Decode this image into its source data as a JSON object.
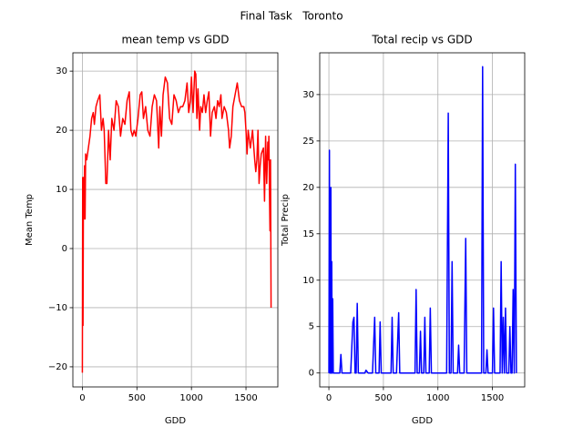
{
  "figure_title": "Final Task   Toronto",
  "chart_data": [
    {
      "type": "line",
      "title": "mean temp vs GDD",
      "xlabel": "GDD",
      "ylabel": "Mean Temp",
      "x": [
        0,
        3,
        6,
        10,
        15,
        20,
        25,
        30,
        40,
        55,
        70,
        85,
        100,
        110,
        125,
        140,
        160,
        175,
        190,
        200,
        215,
        225,
        240,
        255,
        270,
        290,
        310,
        330,
        350,
        370,
        390,
        410,
        430,
        445,
        460,
        475,
        490,
        510,
        530,
        545,
        560,
        580,
        600,
        620,
        640,
        660,
        680,
        700,
        710,
        725,
        740,
        760,
        780,
        800,
        820,
        840,
        860,
        880,
        900,
        920,
        940,
        960,
        975,
        990,
        1000,
        1015,
        1030,
        1040,
        1050,
        1060,
        1075,
        1085,
        1100,
        1115,
        1130,
        1145,
        1160,
        1175,
        1190,
        1210,
        1225,
        1240,
        1255,
        1270,
        1280,
        1300,
        1320,
        1340,
        1350,
        1365,
        1380,
        1400,
        1420,
        1440,
        1460,
        1480,
        1490,
        1500,
        1510,
        1520,
        1540,
        1560,
        1580,
        1590,
        1600,
        1610,
        1620,
        1630,
        1640,
        1660,
        1670,
        1680,
        1690,
        1700,
        1705,
        1710,
        1715,
        1720,
        1725,
        1730
      ],
      "series": [
        {
          "color": "#ff0000",
          "values": [
            -21,
            12,
            -13,
            12,
            5,
            14,
            5,
            16,
            15,
            17,
            19,
            22,
            23,
            21,
            24,
            25,
            26,
            20,
            22,
            20,
            11,
            11,
            20,
            15,
            22,
            20,
            25,
            24,
            19,
            22,
            21,
            25,
            26.5,
            20,
            19,
            20,
            19,
            22,
            26,
            26.5,
            22,
            24,
            20,
            19,
            24,
            26,
            25,
            17,
            24,
            19,
            26,
            29,
            28,
            22,
            21,
            26,
            25,
            23,
            24,
            24,
            25,
            28,
            23,
            25,
            29,
            23,
            30,
            29.5,
            22,
            27,
            20,
            24,
            23,
            26,
            23,
            25,
            26.5,
            19,
            23,
            24,
            22,
            25,
            24,
            26,
            22,
            24,
            23,
            20,
            17,
            19,
            24,
            26,
            28,
            25,
            24,
            24,
            23,
            20,
            16,
            20,
            17,
            20,
            15,
            13,
            15,
            20,
            11,
            14,
            16,
            17,
            8,
            19,
            11,
            18,
            15,
            19,
            10,
            3,
            15,
            -10
          ]
        }
      ],
      "xlim": [
        -87,
        1792
      ],
      "ylim": [
        -23.4,
        33.1
      ],
      "xticks": [
        0,
        500,
        1000,
        1500
      ],
      "yticks": [
        {
          "value": -20,
          "label": "−20"
        },
        {
          "value": -10,
          "label": "−10"
        },
        0,
        10,
        20,
        30
      ],
      "grid": true
    },
    {
      "type": "line",
      "title": "Total recip vs GDD",
      "xlabel": "GDD",
      "ylabel": "Total Precip",
      "x": [
        0,
        5,
        8,
        12,
        15,
        18,
        22,
        26,
        30,
        35,
        40,
        100,
        110,
        120,
        200,
        220,
        230,
        240,
        250,
        260,
        270,
        330,
        340,
        360,
        400,
        420,
        430,
        460,
        470,
        480,
        570,
        580,
        590,
        620,
        640,
        650,
        680,
        790,
        800,
        810,
        830,
        840,
        850,
        870,
        880,
        890,
        920,
        930,
        940,
        1080,
        1095,
        1105,
        1120,
        1130,
        1140,
        1180,
        1190,
        1200,
        1240,
        1255,
        1265,
        1400,
        1410,
        1420,
        1440,
        1450,
        1460,
        1500,
        1510,
        1520,
        1570,
        1580,
        1590,
        1600,
        1610,
        1620,
        1630,
        1650,
        1660,
        1670,
        1680,
        1690,
        1700,
        1710,
        1720
      ],
      "series": [
        {
          "color": "#0000ff",
          "values": [
            0,
            24,
            0,
            18,
            0,
            20,
            0,
            12,
            0,
            8,
            0,
            0,
            2,
            0,
            0,
            5.5,
            6,
            0,
            0,
            7.5,
            0,
            0,
            0.3,
            0,
            0,
            6,
            0,
            0,
            5.5,
            0,
            0,
            6,
            0,
            0,
            6.5,
            0,
            0,
            0,
            9,
            0,
            0,
            4.5,
            0,
            0,
            6,
            0,
            0,
            7,
            0,
            0,
            28,
            0,
            0,
            12,
            0,
            0,
            3,
            0,
            0,
            14.5,
            0,
            0,
            33,
            0,
            0,
            2.5,
            0,
            0,
            7,
            0,
            0,
            12,
            0,
            6,
            0,
            7,
            0,
            0,
            5,
            0,
            0,
            9,
            0,
            22.5,
            0
          ]
        }
      ],
      "xlim": [
        -84,
        1796
      ],
      "ylim": [
        -1.5,
        34.5
      ],
      "xticks": [
        0,
        500,
        1000,
        1500
      ],
      "yticks": [
        0,
        5,
        10,
        15,
        20,
        25,
        30
      ],
      "grid": true
    }
  ]
}
